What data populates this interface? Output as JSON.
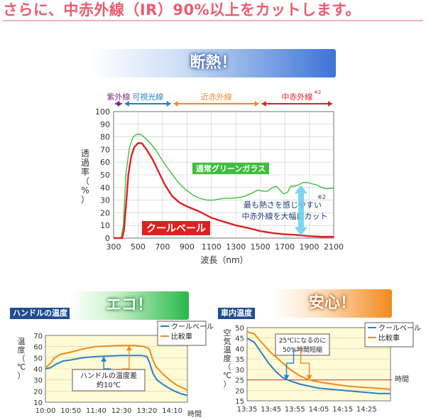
{
  "headline": "さらに、中赤外線（IR）90%以上をカットします。",
  "main_chart": {
    "banner": "断熱！",
    "bands": [
      {
        "label": "紫外線",
        "color": "#7b2e8c",
        "from": 300,
        "to": 380
      },
      {
        "label": "可視光線",
        "color": "#2a7fc4",
        "from": 380,
        "to": 780
      },
      {
        "label": "近赤外線",
        "color": "#f08a1e",
        "from": 780,
        "to": 1500
      },
      {
        "label": "中赤外線",
        "color": "#e02020",
        "from": 1500,
        "to": 2100
      }
    ],
    "band_note": "※2",
    "ylabel": "透過率（%）",
    "xlabel": "波長（nm）",
    "annotation_line1": "最も熱さを感じやすい",
    "annotation_line2": "中赤外線を大幅にカット",
    "annotation_note": "※2",
    "colors": {
      "green": "#3cbf3c",
      "red": "#e02020",
      "cyan": "#6fd0ee"
    },
    "chart_data": {
      "type": "line",
      "xlim": [
        300,
        2100
      ],
      "ylim": [
        0,
        100
      ],
      "x_ticks": [
        300,
        500,
        700,
        900,
        1100,
        1300,
        1500,
        1700,
        1900,
        2100
      ],
      "y_ticks": [
        0,
        10,
        20,
        30,
        40,
        50,
        60,
        70,
        80,
        90,
        100
      ],
      "grid": true,
      "series": [
        {
          "name": "通常グリーンガラス",
          "color": "#3cbf3c",
          "points": [
            [
              300,
              0
            ],
            [
              360,
              0
            ],
            [
              380,
              10
            ],
            [
              400,
              50
            ],
            [
              430,
              72
            ],
            [
              460,
              80
            ],
            [
              490,
              82
            ],
            [
              520,
              82
            ],
            [
              560,
              79
            ],
            [
              600,
              75
            ],
            [
              650,
              69
            ],
            [
              700,
              61
            ],
            [
              760,
              53
            ],
            [
              820,
              45
            ],
            [
              880,
              39
            ],
            [
              950,
              34
            ],
            [
              1000,
              31.5
            ],
            [
              1060,
              30
            ],
            [
              1120,
              30
            ],
            [
              1170,
              31
            ],
            [
              1220,
              31.5
            ],
            [
              1270,
              31.5
            ],
            [
              1320,
              32
            ],
            [
              1370,
              33
            ],
            [
              1420,
              35
            ],
            [
              1480,
              38
            ],
            [
              1520,
              37
            ],
            [
              1560,
              37
            ],
            [
              1600,
              40
            ],
            [
              1630,
              41
            ],
            [
              1660,
              38
            ],
            [
              1690,
              35
            ],
            [
              1720,
              36
            ],
            [
              1750,
              41
            ],
            [
              1780,
              41
            ],
            [
              1810,
              42
            ],
            [
              1850,
              44
            ],
            [
              1880,
              44
            ],
            [
              1920,
              43
            ],
            [
              1960,
              42
            ],
            [
              2000,
              40
            ],
            [
              2040,
              39
            ],
            [
              2100,
              39.5
            ]
          ]
        },
        {
          "name": "クールベール",
          "color": "#e02020",
          "points": [
            [
              300,
              0
            ],
            [
              370,
              0
            ],
            [
              385,
              6
            ],
            [
              405,
              30
            ],
            [
              420,
              50
            ],
            [
              445,
              65
            ],
            [
              470,
              72
            ],
            [
              500,
              75
            ],
            [
              530,
              75
            ],
            [
              570,
              70
            ],
            [
              620,
              62
            ],
            [
              670,
              52
            ],
            [
              720,
              42
            ],
            [
              780,
              33
            ],
            [
              840,
              28
            ],
            [
              900,
              25
            ],
            [
              1000,
              21
            ],
            [
              1100,
              16
            ],
            [
              1200,
              13
            ],
            [
              1300,
              10
            ],
            [
              1400,
              8
            ],
            [
              1500,
              5.5
            ],
            [
              1600,
              4
            ],
            [
              1700,
              3
            ],
            [
              1800,
              2.5
            ],
            [
              1900,
              1.5
            ],
            [
              2000,
              1
            ],
            [
              2100,
              1
            ]
          ]
        }
      ]
    }
  },
  "eco_chart": {
    "banner": "エコ！",
    "tag": "ハンドルの温度",
    "ylabel": "温度（℃）",
    "x_unit": "時間",
    "annotation_line1": "ハンドルの温度差",
    "annotation_line2": "約10℃",
    "colors": {
      "blue": "#2a7fc4",
      "orange": "#f08a1e"
    },
    "chart_data": {
      "type": "line",
      "ylim": [
        10,
        70
      ],
      "y_ticks": [
        10,
        20,
        30,
        40,
        50,
        60,
        70
      ],
      "x_ticks": [
        "10:00",
        "10:50",
        "11:40",
        "12:30",
        "13:20",
        "14:10"
      ],
      "x_minutes": [
        0,
        50,
        100,
        150,
        200,
        250
      ],
      "xlim_minutes": [
        0,
        280
      ],
      "series": [
        {
          "name": "クールベール",
          "color": "#2a7fc4",
          "points": [
            [
              0,
              40
            ],
            [
              10,
              41
            ],
            [
              20,
              44
            ],
            [
              35,
              47
            ],
            [
              50,
              48
            ],
            [
              75,
              50
            ],
            [
              100,
              51
            ],
            [
              125,
              51.5
            ],
            [
              150,
              52
            ],
            [
              165,
              52
            ],
            [
              180,
              52
            ],
            [
              190,
              52
            ],
            [
              200,
              51
            ],
            [
              205,
              46
            ],
            [
              212,
              36
            ],
            [
              220,
              30
            ],
            [
              235,
              25
            ],
            [
              250,
              21
            ],
            [
              265,
              18
            ],
            [
              280,
              16
            ]
          ]
        },
        {
          "name": "比較車",
          "color": "#f08a1e",
          "points": [
            [
              0,
              41
            ],
            [
              8,
              44
            ],
            [
              18,
              50
            ],
            [
              30,
              53
            ],
            [
              50,
              55
            ],
            [
              75,
              58
            ],
            [
              100,
              60
            ],
            [
              125,
              60.5
            ],
            [
              150,
              61
            ],
            [
              175,
              61
            ],
            [
              195,
              60
            ],
            [
              205,
              58
            ],
            [
              210,
              50
            ],
            [
              218,
              42
            ],
            [
              230,
              36
            ],
            [
              245,
              30
            ],
            [
              260,
              25
            ],
            [
              280,
              21
            ]
          ]
        }
      ]
    }
  },
  "anshin_chart": {
    "banner": "安心！",
    "tag": "車内温度",
    "ylabel": "空気温度（℃）",
    "x_unit": "時間",
    "annotation_line1": "25℃になるのに",
    "annotation_line2": "50%時間短縮",
    "colors": {
      "blue": "#2a7fc4",
      "orange": "#f08a1e",
      "ref": "#c03030"
    },
    "chart_data": {
      "type": "line",
      "ylim": [
        15,
        50
      ],
      "y_ticks": [
        15,
        20,
        25,
        30,
        35,
        40,
        45,
        50
      ],
      "x_ticks": [
        "13:35",
        "13:45",
        "13:55",
        "14:05",
        "14:15",
        "14:25"
      ],
      "x_minutes": [
        0,
        10,
        20,
        30,
        40,
        50
      ],
      "xlim_minutes": [
        0,
        60
      ],
      "reference_line": 25,
      "series": [
        {
          "name": "クールベール",
          "color": "#2a7fc4",
          "points": [
            [
              0,
              45
            ],
            [
              3,
              43
            ],
            [
              6,
              38
            ],
            [
              9,
              33
            ],
            [
              12,
              29
            ],
            [
              15,
              26
            ],
            [
              18,
              24.5
            ],
            [
              22,
              23
            ],
            [
              26,
              22
            ],
            [
              30,
              21
            ],
            [
              35,
              20.5
            ],
            [
              40,
              20
            ],
            [
              45,
              19.5
            ],
            [
              50,
              19
            ],
            [
              55,
              18.5
            ],
            [
              60,
              18.5
            ]
          ]
        },
        {
          "name": "比較車",
          "color": "#f08a1e",
          "points": [
            [
              0,
              48
            ],
            [
              3,
              47
            ],
            [
              6,
              43
            ],
            [
              10,
              38
            ],
            [
              14,
              34
            ],
            [
              18,
              30
            ],
            [
              22,
              27
            ],
            [
              26,
              25
            ],
            [
              30,
              24
            ],
            [
              36,
              23
            ],
            [
              42,
              22
            ],
            [
              48,
              21.5
            ],
            [
              54,
              21
            ],
            [
              60,
              20.5
            ]
          ]
        }
      ]
    }
  }
}
